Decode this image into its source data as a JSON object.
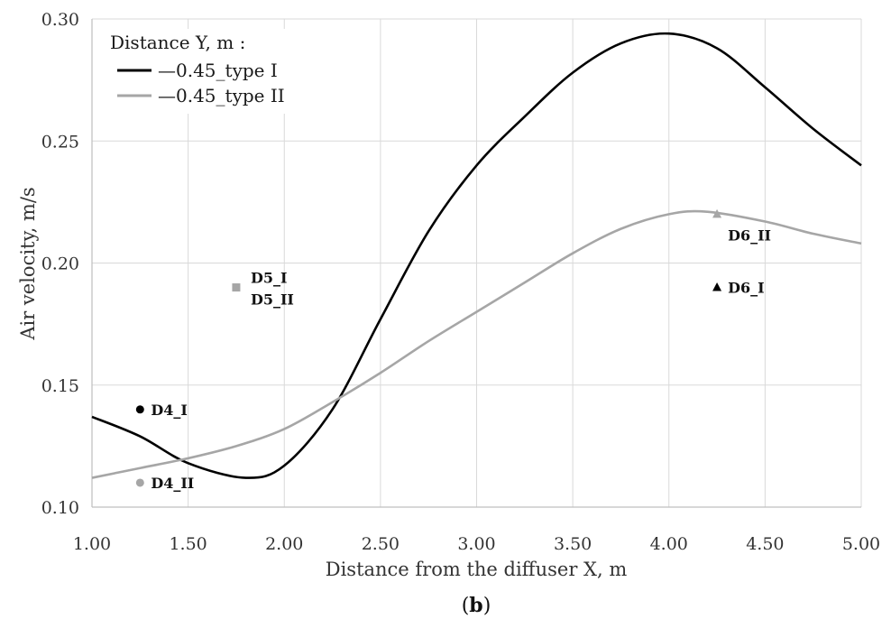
{
  "chart_data": {
    "type": "line",
    "xlabel": "Distance from the diffuser X, m",
    "ylabel": "Air velocity, m/s",
    "xlim": [
      1.0,
      5.0
    ],
    "ylim": [
      0.1,
      0.3
    ],
    "xticks": [
      "1.00",
      "1.50",
      "2.00",
      "2.50",
      "3.00",
      "3.50",
      "4.00",
      "4.50",
      "5.00"
    ],
    "yticks": [
      "0.10",
      "0.15",
      "0.20",
      "0.25",
      "0.30"
    ],
    "grid": true,
    "legend": {
      "title": "Distance Y, m :",
      "position": "top-left"
    },
    "series": [
      {
        "name": "0.45_type I",
        "color": "#000000",
        "x": [
          1.0,
          1.25,
          1.5,
          1.8,
          2.0,
          2.25,
          2.5,
          2.75,
          3.0,
          3.25,
          3.5,
          3.75,
          4.0,
          4.25,
          4.5,
          4.75,
          5.0
        ],
        "y": [
          0.137,
          0.129,
          0.118,
          0.112,
          0.117,
          0.14,
          0.177,
          0.213,
          0.24,
          0.26,
          0.278,
          0.29,
          0.294,
          0.288,
          0.272,
          0.255,
          0.24
        ]
      },
      {
        "name": "0.45_type II",
        "color": "#a6a6a6",
        "x": [
          1.0,
          1.25,
          1.5,
          1.75,
          2.0,
          2.25,
          2.5,
          2.75,
          3.0,
          3.25,
          3.5,
          3.75,
          4.0,
          4.2,
          4.5,
          4.75,
          5.0
        ],
        "y": [
          0.112,
          0.116,
          0.12,
          0.125,
          0.132,
          0.143,
          0.155,
          0.168,
          0.18,
          0.192,
          0.204,
          0.214,
          0.22,
          0.221,
          0.217,
          0.212,
          0.208
        ]
      }
    ],
    "points": [
      {
        "label": "D4_I",
        "x": 1.25,
        "y": 0.14,
        "marker": "circle",
        "color": "#000000"
      },
      {
        "label": "D4_II",
        "x": 1.25,
        "y": 0.11,
        "marker": "circle",
        "color": "#a6a6a6"
      },
      {
        "label": "D5_I",
        "x": 1.75,
        "y": 0.19,
        "marker": "square",
        "color": "#a6a6a6"
      },
      {
        "label": "D5_II",
        "x": 1.75,
        "y": 0.19,
        "marker": "none",
        "color": "#a6a6a6"
      },
      {
        "label": "D6_I",
        "x": 4.25,
        "y": 0.19,
        "marker": "triangle",
        "color": "#000000"
      },
      {
        "label": "D6_II",
        "x": 4.25,
        "y": 0.22,
        "marker": "triangle",
        "color": "#a6a6a6"
      }
    ]
  },
  "caption": {
    "open": "(",
    "letter": "b",
    "close": ")"
  }
}
